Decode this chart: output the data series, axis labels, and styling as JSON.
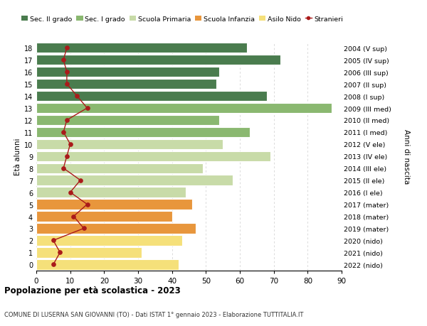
{
  "ages": [
    0,
    1,
    2,
    3,
    4,
    5,
    6,
    7,
    8,
    9,
    10,
    11,
    12,
    13,
    14,
    15,
    16,
    17,
    18
  ],
  "bar_values": [
    42,
    31,
    43,
    47,
    40,
    46,
    44,
    58,
    49,
    69,
    55,
    63,
    54,
    87,
    68,
    53,
    54,
    72,
    62
  ],
  "bar_colors": [
    "#f5e07a",
    "#f5e07a",
    "#f5e07a",
    "#e8963c",
    "#e8963c",
    "#e8963c",
    "#c8dba8",
    "#c8dba8",
    "#c8dba8",
    "#c8dba8",
    "#c8dba8",
    "#8ab870",
    "#8ab870",
    "#8ab870",
    "#4a7c4e",
    "#4a7c4e",
    "#4a7c4e",
    "#4a7c4e",
    "#4a7c4e"
  ],
  "stranieri_values": [
    5,
    7,
    5,
    14,
    11,
    15,
    10,
    13,
    8,
    9,
    10,
    8,
    9,
    15,
    12,
    9,
    9,
    8,
    9
  ],
  "right_labels": [
    "2022 (nido)",
    "2021 (nido)",
    "2020 (nido)",
    "2019 (mater)",
    "2018 (mater)",
    "2017 (mater)",
    "2016 (I ele)",
    "2015 (II ele)",
    "2014 (III ele)",
    "2013 (IV ele)",
    "2012 (V ele)",
    "2011 (I med)",
    "2010 (II med)",
    "2009 (III med)",
    "2008 (I sup)",
    "2007 (II sup)",
    "2006 (III sup)",
    "2005 (IV sup)",
    "2004 (V sup)"
  ],
  "legend_labels": [
    "Sec. II grado",
    "Sec. I grado",
    "Scuola Primaria",
    "Scuola Infanzia",
    "Asilo Nido",
    "Stranieri"
  ],
  "legend_colors": [
    "#4a7c4e",
    "#8ab870",
    "#c8dba8",
    "#e8963c",
    "#f5e07a",
    "#aa1a1a"
  ],
  "ylabel_left": "Età alunni",
  "ylabel_right": "Anni di nascita",
  "title": "Popolazione per età scolastica - 2023",
  "subtitle": "COMUNE DI LUSERNA SAN GIOVANNI (TO) - Dati ISTAT 1° gennaio 2023 - Elaborazione TUTTITALIA.IT",
  "xlim": [
    0,
    90
  ],
  "xticks": [
    0,
    10,
    20,
    30,
    40,
    50,
    60,
    70,
    80,
    90
  ],
  "bg_color": "#ffffff",
  "bar_edge_color": "#ffffff",
  "grid_color": "#cccccc",
  "stranieri_line_color": "#aa1a1a",
  "stranieri_marker_color": "#aa1a1a"
}
